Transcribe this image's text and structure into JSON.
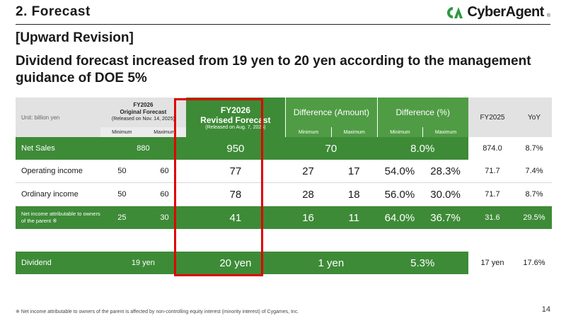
{
  "header": {
    "title": "2.  Forecast",
    "logo_text": "CyberAgent",
    "logo_reg": "®"
  },
  "subhead": "[Upward Revision]",
  "headline": "Dividend forecast increased from 19 yen to 20 yen according to the management guidance of DOE 5%",
  "table": {
    "unit_label": "Unit: billion yen",
    "original_forecast": {
      "line1": "FY2026",
      "line2": "Original Forecast",
      "line3": "(Released on Nov. 14, 2025)"
    },
    "revised_forecast": {
      "line1": "FY2026",
      "line2": "Revised Forecast",
      "line3": "(Released on Aug. 7, 2026)"
    },
    "diff_amount": "Difference (Amount)",
    "diff_pct": "Difference (%)",
    "fy2025": "FY2025",
    "yoy": "YoY",
    "min_label": "Minimum",
    "max_label": "Maximum",
    "rows": {
      "net_sales": {
        "label": "Net Sales",
        "original": "880",
        "revised": "950",
        "diff_amount": "70",
        "diff_pct": "8.0%",
        "fy2025": "874.0",
        "yoy": "8.7%"
      },
      "operating_income": {
        "label": "Operating income",
        "orig_min": "50",
        "orig_max": "60",
        "revised": "77",
        "amt_min": "27",
        "amt_max": "17",
        "pct_min": "54.0%",
        "pct_max": "28.3%",
        "fy2025": "71.7",
        "yoy": "7.4%"
      },
      "ordinary_income": {
        "label": "Ordinary income",
        "orig_min": "50",
        "orig_max": "60",
        "revised": "78",
        "amt_min": "28",
        "amt_max": "18",
        "pct_min": "56.0%",
        "pct_max": "30.0%",
        "fy2025": "71.7",
        "yoy": "8.7%"
      },
      "net_income": {
        "label": "Net income attributable to owners of the parent ※",
        "orig_min": "25",
        "orig_max": "30",
        "revised": "41",
        "amt_min": "16",
        "amt_max": "11",
        "pct_min": "64.0%",
        "pct_max": "36.7%",
        "fy2025": "31.6",
        "yoy": "29.5%"
      },
      "dividend": {
        "label": "Dividend",
        "original": "19 yen",
        "revised": "20 yen",
        "diff_amount": "1 yen",
        "diff_pct": "5.3%",
        "fy2025": "17 yen",
        "yoy": "17.6%"
      }
    }
  },
  "footnote": "※  Net income attributable to owners of the parent is affected by non-controlling equity interest (minority interest) of Cygames, Inc.",
  "page_number": "14",
  "colors": {
    "green": "#3d8b37",
    "highlight": "#e00000",
    "logo_green": "#2e9a3e"
  }
}
